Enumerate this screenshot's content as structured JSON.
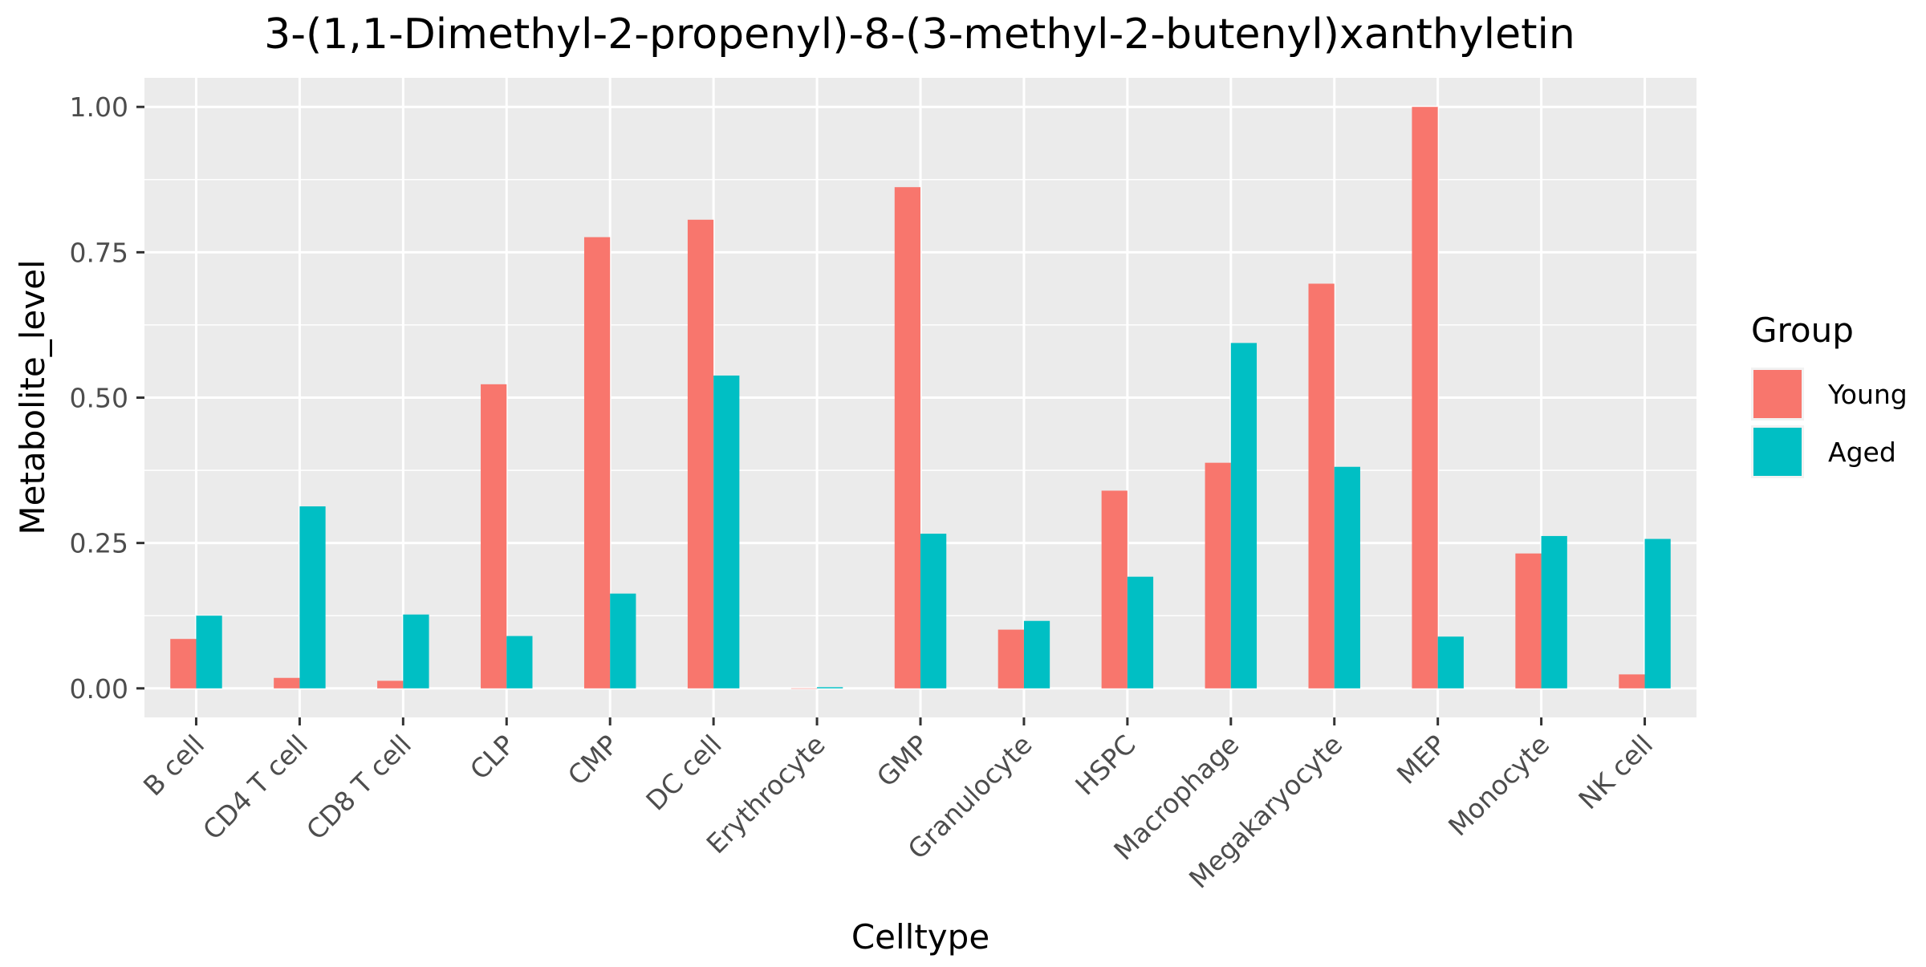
{
  "chart_data": {
    "type": "bar",
    "title": "3-(1,1-Dimethyl-2-propenyl)-8-(3-methyl-2-butenyl)xanthyletin",
    "xlabel": "Celltype",
    "ylabel": "Metabolite_level",
    "ylim": [
      -0.05,
      1.05
    ],
    "yticks": [
      0.0,
      0.25,
      0.5,
      0.75,
      1.0
    ],
    "ytick_labels": [
      "0.00",
      "0.25",
      "0.50",
      "0.75",
      "1.00"
    ],
    "grid": true,
    "legend": {
      "title": "Group",
      "placement": "right"
    },
    "categories": [
      "B cell",
      "CD4 T cell",
      "CD8 T cell",
      "CLP",
      "CMP",
      "DC cell",
      "Erythrocyte",
      "GMP",
      "Granulocyte",
      "HSPC",
      "Macrophage",
      "Megakaryocyte",
      "MEP",
      "Monocyte",
      "NK cell"
    ],
    "series": [
      {
        "name": "Young",
        "color": "#F8766D",
        "values": [
          0.085,
          0.018,
          0.013,
          0.523,
          0.776,
          0.806,
          0.0,
          0.862,
          0.101,
          0.34,
          0.388,
          0.696,
          1.0,
          0.232,
          0.024
        ]
      },
      {
        "name": "Aged",
        "color": "#00BFC4",
        "values": [
          0.125,
          0.313,
          0.127,
          0.09,
          0.163,
          0.538,
          0.002,
          0.266,
          0.116,
          0.192,
          0.594,
          0.381,
          0.089,
          0.262,
          0.257
        ]
      }
    ]
  }
}
